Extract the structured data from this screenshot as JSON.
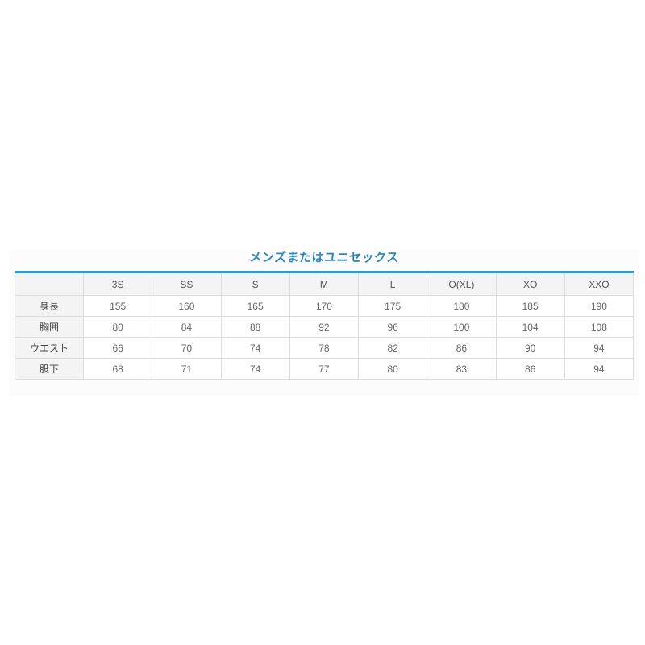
{
  "page": {
    "background_color": "#ffffff",
    "panel_color": "#fcfcfc"
  },
  "size_chart": {
    "title": "メンズまたはユニセックス",
    "title_color": "#2e86b8",
    "top_border_color": "#3a96c8",
    "header_bg_color": "#f4f4f4",
    "columns": [
      "3S",
      "SS",
      "S",
      "M",
      "L",
      "O(XL)",
      "XO",
      "XXO"
    ],
    "rows": [
      {
        "label": "身長",
        "values": [
          "155",
          "160",
          "165",
          "170",
          "175",
          "180",
          "185",
          "190"
        ]
      },
      {
        "label": "胸囲",
        "values": [
          "80",
          "84",
          "88",
          "92",
          "96",
          "100",
          "104",
          "108"
        ]
      },
      {
        "label": "ウエスト",
        "values": [
          "66",
          "70",
          "74",
          "78",
          "82",
          "86",
          "90",
          "94"
        ]
      },
      {
        "label": "股下",
        "values": [
          "68",
          "71",
          "74",
          "77",
          "80",
          "83",
          "86",
          "94"
        ]
      }
    ]
  },
  "chart_data": {
    "type": "table",
    "title": "メンズまたはユニセックス",
    "columns": [
      "",
      "3S",
      "SS",
      "S",
      "M",
      "L",
      "O(XL)",
      "XO",
      "XXO"
    ],
    "rows": [
      [
        "身長",
        155,
        160,
        165,
        170,
        175,
        180,
        185,
        190
      ],
      [
        "胸囲",
        80,
        84,
        88,
        92,
        96,
        100,
        104,
        108
      ],
      [
        "ウエスト",
        66,
        70,
        74,
        78,
        82,
        86,
        90,
        94
      ],
      [
        "股下",
        68,
        71,
        74,
        77,
        80,
        83,
        86,
        94
      ]
    ]
  }
}
